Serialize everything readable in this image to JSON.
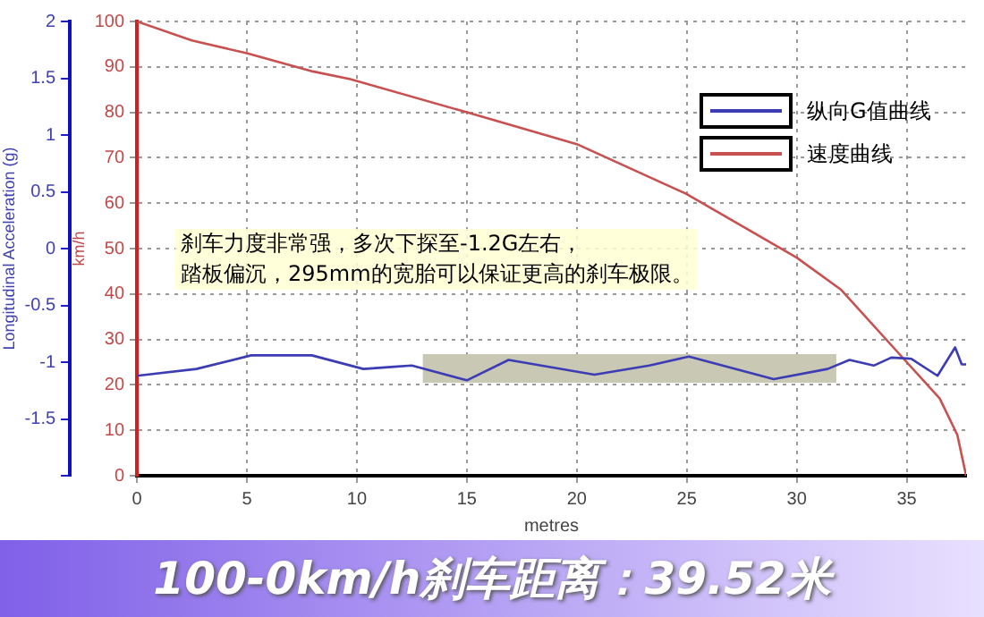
{
  "chart_data": {
    "type": "line",
    "title": "100-0km/h刹车距离：39.52米",
    "xlabel": "metres",
    "ylabel": "km/h",
    "y2label": "Longitudinal Acceleration (g)",
    "annotations": [
      "刹车力度非常强，多次下探至-1.2G左右，",
      "踏板偏沉，295mm的宽胎可以保证更高的刹车极限。"
    ],
    "series": [
      {
        "name": "纵向G值曲线",
        "color": "#3c3cb4",
        "axis": "y2",
        "x": [
          0,
          2.7,
          5.2,
          7.95,
          10.3,
          11,
          11.7,
          12.5,
          15,
          16.9,
          20.8,
          23.3,
          25.1,
          28.95,
          31.4,
          32.4,
          33.5,
          34.3,
          35.2,
          36.4,
          37.2,
          37.5,
          37.7
        ],
        "values": [
          -1.12,
          -1.06,
          -0.94,
          -0.94,
          -1.06,
          -1.05,
          -1.04,
          -1.03,
          -1.16,
          -0.98,
          -1.11,
          -1.03,
          -0.95,
          -1.15,
          -1.06,
          -0.98,
          -1.03,
          -0.96,
          -0.97,
          -1.12,
          -0.87,
          -1.02,
          -1.02
        ]
      },
      {
        "name": "速度曲线",
        "color": "#c85050",
        "axis": "y",
        "x": [
          0,
          2.5,
          5,
          8,
          9.7,
          15,
          20,
          25,
          30,
          32,
          35,
          36.5,
          37.3,
          37.7
        ],
        "values": [
          100,
          95.8,
          93,
          89,
          87.3,
          80,
          73,
          62,
          48,
          41,
          25,
          17,
          9,
          0
        ]
      }
    ],
    "xlim": [
      0,
      37.7
    ],
    "xticks": [
      0,
      5,
      10,
      15,
      20,
      25,
      30,
      35
    ],
    "ylim": [
      0,
      100
    ],
    "yticks": [
      0,
      10,
      20,
      30,
      40,
      50,
      60,
      70,
      80,
      90,
      100
    ],
    "y2lim": [
      -2,
      2
    ],
    "y2ticks": [
      {
        "value": -2,
        "label": null
      },
      -1.5,
      -1,
      -0.5,
      0,
      0.5,
      1,
      1.5,
      2
    ],
    "bands": [
      {
        "axis": "x",
        "from": 13,
        "to": 31.8,
        "color": "#c8c8b4"
      }
    ],
    "grid": true,
    "legend": "top right",
    "marker": "none",
    "line_style": "solid"
  }
}
